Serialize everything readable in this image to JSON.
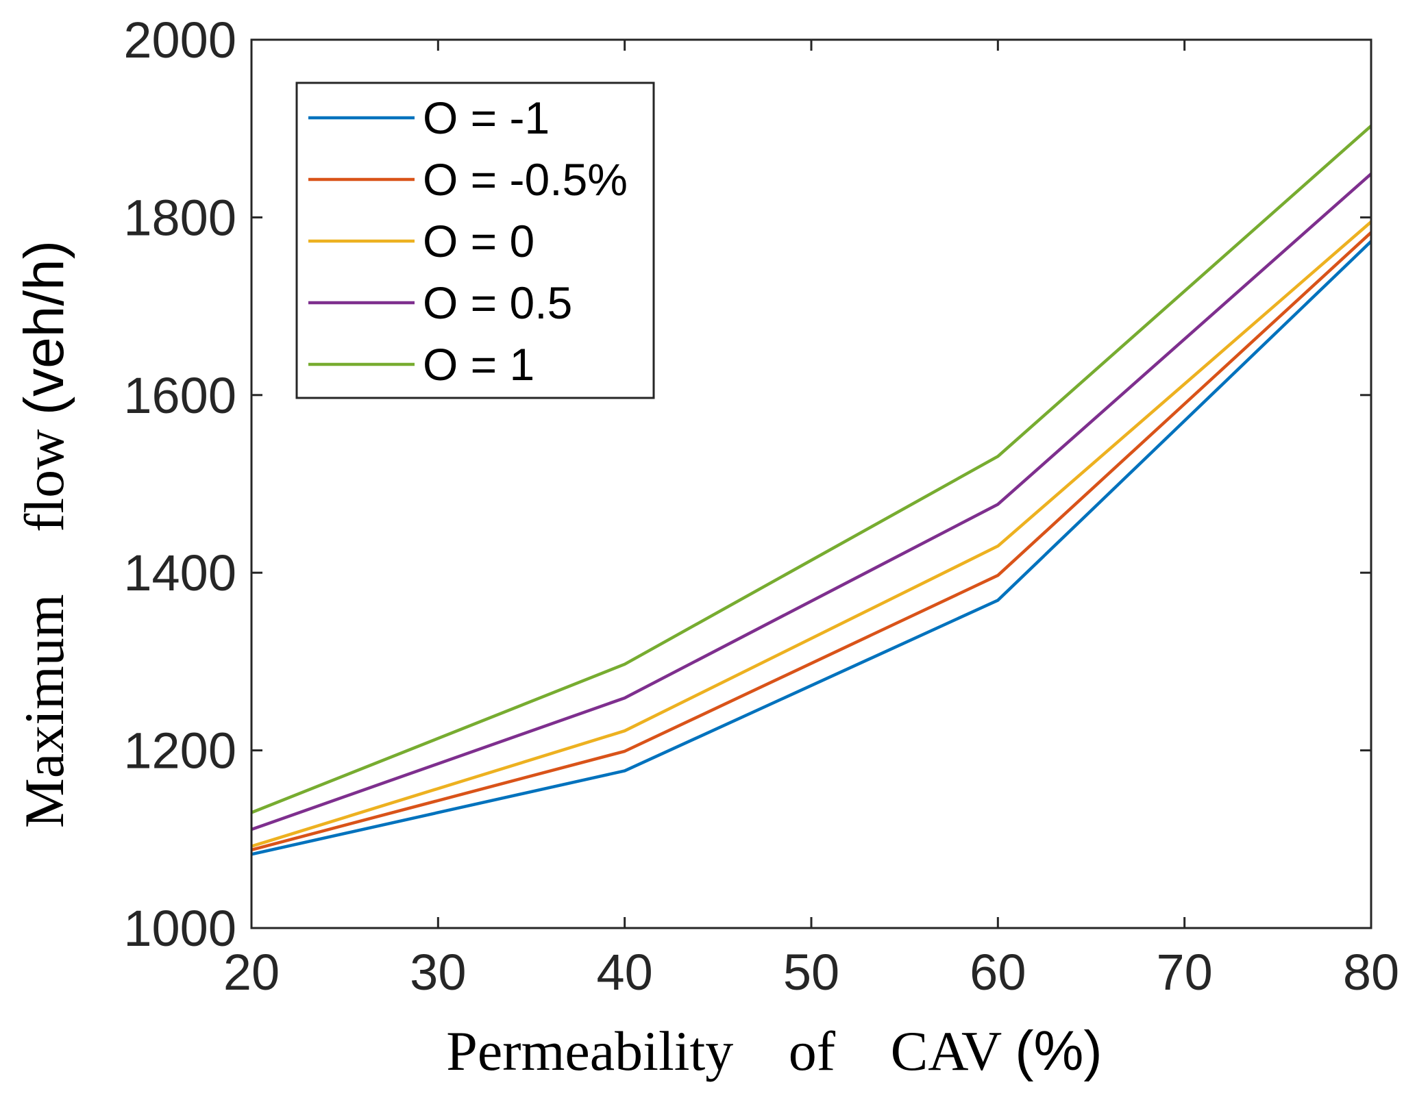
{
  "chart_data": {
    "type": "line",
    "title": "",
    "xlabel_parts": [
      "Permeability",
      "of",
      "CAV",
      "(%)"
    ],
    "ylabel_parts": [
      "Maximum",
      "flow",
      "(veh/h)"
    ],
    "xlim": [
      20,
      80
    ],
    "ylim": [
      1000,
      2000
    ],
    "xticks": [
      20,
      30,
      40,
      50,
      60,
      70,
      80
    ],
    "yticks": [
      1000,
      1200,
      1400,
      1600,
      1800,
      2000
    ],
    "grid": false,
    "legend_position": "top-left",
    "x": [
      20,
      40,
      60,
      80
    ],
    "series": [
      {
        "name": "O = -1",
        "color": "#0072BD",
        "values": [
          1083,
          1177,
          1369,
          1773
        ]
      },
      {
        "name": "O = -0.5%",
        "color": "#D95319",
        "values": [
          1088,
          1199,
          1397,
          1783
        ]
      },
      {
        "name": "O = 0",
        "color": "#EDB120",
        "values": [
          1092,
          1222,
          1430,
          1795
        ]
      },
      {
        "name": "O = 0.5",
        "color": "#7E2F8E",
        "values": [
          1111,
          1259,
          1477,
          1849
        ]
      },
      {
        "name": "O = 1",
        "color": "#77AC30",
        "values": [
          1130,
          1297,
          1531,
          1903
        ]
      }
    ]
  }
}
